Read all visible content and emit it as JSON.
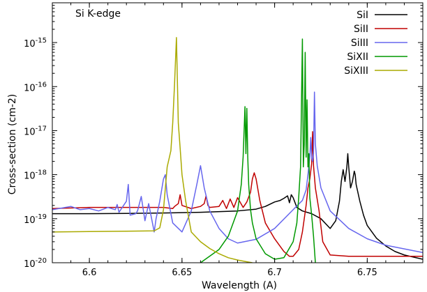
{
  "chart_data": {
    "type": "line",
    "title": "",
    "annotation": "Si K-edge",
    "xlabel": "Wavelength (A)",
    "ylabel": "Cross-section (cm-2)",
    "xlim": [
      6.58,
      6.78
    ],
    "ylim": [
      1e-20,
      8e-15
    ],
    "yscale": "log",
    "grid": false,
    "legend_position": "top-right",
    "x_ticks": [
      {
        "value": 6.6,
        "label": "6.6"
      },
      {
        "value": 6.65,
        "label": "6.65"
      },
      {
        "value": 6.7,
        "label": "6.7"
      },
      {
        "value": 6.75,
        "label": "6.75"
      }
    ],
    "y_ticks": [
      {
        "value": 1e-20,
        "base": "10",
        "exp": "-20"
      },
      {
        "value": 1e-19,
        "base": "10",
        "exp": "-19"
      },
      {
        "value": 1e-18,
        "base": "10",
        "exp": "-18"
      },
      {
        "value": 1e-17,
        "base": "10",
        "exp": "-17"
      },
      {
        "value": 1e-16,
        "base": "10",
        "exp": "-16"
      },
      {
        "value": 1e-15,
        "base": "10",
        "exp": "-15"
      }
    ],
    "series": [
      {
        "name": "SiI",
        "color": "#000000",
        "x": [
          6.58,
          6.6,
          6.62,
          6.64,
          6.66,
          6.68,
          6.69,
          6.695,
          6.7,
          6.703,
          6.705,
          6.707,
          6.708,
          6.709,
          6.71,
          6.712,
          6.715,
          6.72,
          6.725,
          6.73,
          6.733,
          6.735,
          6.736,
          6.737,
          6.738,
          6.739,
          6.7395,
          6.74,
          6.741,
          6.742,
          6.743,
          6.7435,
          6.744,
          6.746,
          6.748,
          6.75,
          6.755,
          6.76,
          6.765,
          6.77,
          6.78
        ],
        "y": [
          1.3e-19,
          1.3e-19,
          1.32e-19,
          1.35e-19,
          1.4e-19,
          1.5e-19,
          1.65e-19,
          1.9e-19,
          2.4e-19,
          2.6e-19,
          2.9e-19,
          3.3e-19,
          2.3e-19,
          3.5e-19,
          3e-19,
          1.8e-19,
          1.5e-19,
          1.3e-19,
          1e-19,
          6e-20,
          9e-20,
          2.5e-19,
          7e-19,
          1.3e-18,
          7e-19,
          1.5e-18,
          3e-18,
          1.5e-18,
          5e-19,
          7e-19,
          1.2e-18,
          1e-18,
          6e-19,
          2.5e-19,
          1.2e-19,
          7e-20,
          3.6e-20,
          2.4e-20,
          1.8e-20,
          1.5e-20,
          1.2e-20
        ]
      },
      {
        "name": "SiII",
        "color": "#c00000",
        "x": [
          6.58,
          6.6,
          6.62,
          6.64,
          6.645,
          6.646,
          6.648,
          6.649,
          6.65,
          6.655,
          6.66,
          6.662,
          6.663,
          6.664,
          6.665,
          6.67,
          6.672,
          6.674,
          6.676,
          6.678,
          6.68,
          6.683,
          6.685,
          6.687,
          6.688,
          6.689,
          6.69,
          6.692,
          6.695,
          6.7,
          6.705,
          6.708,
          6.71,
          6.713,
          6.715,
          6.717,
          6.718,
          6.719,
          6.72,
          6.7205,
          6.721,
          6.722,
          6.724,
          6.726,
          6.73,
          6.74,
          6.78
        ],
        "y": [
          1.7e-19,
          1.8e-19,
          1.8e-19,
          1.8e-19,
          1.7e-19,
          1.9e-19,
          2.2e-19,
          3.5e-19,
          2e-19,
          1.7e-19,
          1.9e-19,
          2.2e-19,
          3.3e-19,
          2e-19,
          1.8e-19,
          1.9e-19,
          2.6e-19,
          1.7e-19,
          2.8e-19,
          1.8e-19,
          3e-19,
          1.8e-19,
          2.4e-19,
          4e-19,
          8e-19,
          1.1e-18,
          8e-19,
          2.6e-19,
          8e-20,
          3.5e-20,
          1.8e-20,
          1.4e-20,
          1.4e-20,
          2e-20,
          5e-20,
          2e-19,
          5e-19,
          8e-19,
          1.8e-18,
          9.5e-18,
          1.6e-18,
          5e-19,
          1.5e-19,
          3e-20,
          1.5e-20,
          1.4e-20,
          1.4e-20
        ]
      },
      {
        "name": "SiIII",
        "color": "#6666ee",
        "x": [
          6.58,
          6.59,
          6.595,
          6.6,
          6.605,
          6.61,
          6.614,
          6.615,
          6.616,
          6.62,
          6.621,
          6.622,
          6.625,
          6.626,
          6.628,
          6.63,
          6.632,
          6.635,
          6.636,
          6.638,
          6.64,
          6.641,
          6.642,
          6.645,
          6.65,
          6.655,
          6.658,
          6.66,
          6.662,
          6.665,
          6.67,
          6.675,
          6.68,
          6.69,
          6.7,
          6.71,
          6.715,
          6.717,
          6.718,
          6.719,
          6.7195,
          6.72,
          6.7205,
          6.721,
          6.7215,
          6.722,
          6.723,
          6.725,
          6.73,
          6.74,
          6.75,
          6.76,
          6.78
        ],
        "y": [
          1.6e-19,
          1.9e-19,
          1.6e-19,
          1.7e-19,
          1.5e-19,
          1.8e-19,
          1.6e-19,
          2.1e-19,
          1.4e-19,
          2.5e-19,
          6e-19,
          1.2e-19,
          1.3e-19,
          1.5e-19,
          3.2e-19,
          9e-20,
          2.2e-19,
          5e-20,
          1e-19,
          2.5e-19,
          8e-19,
          1e-18,
          3.5e-19,
          8e-20,
          5e-20,
          1.5e-19,
          6e-19,
          1.6e-18,
          5e-19,
          1.5e-19,
          6e-20,
          3.5e-20,
          2.8e-20,
          3.4e-20,
          6e-20,
          1.6e-19,
          2.6e-19,
          4.5e-19,
          1e-18,
          2.5e-18,
          7e-18,
          2.5e-18,
          2e-18,
          3e-18,
          7.5e-17,
          5e-18,
          1.6e-18,
          5e-19,
          1.5e-19,
          6e-20,
          3.5e-20,
          2.5e-20,
          1.7e-20
        ]
      },
      {
        "name": "SiXII",
        "color": "#009900",
        "x": [
          6.66,
          6.67,
          6.675,
          6.68,
          6.682,
          6.683,
          6.684,
          6.6845,
          6.685,
          6.6855,
          6.686,
          6.687,
          6.688,
          6.69,
          6.695,
          6.7,
          6.705,
          6.71,
          6.712,
          6.713,
          6.714,
          6.715,
          6.7155,
          6.716,
          6.7165,
          6.717,
          6.7175,
          6.718,
          6.7185,
          6.719,
          6.72,
          6.721,
          6.722
        ],
        "y": [
          1e-20,
          2e-20,
          4e-20,
          1.5e-19,
          6e-19,
          2.5e-18,
          3.5e-17,
          3e-18,
          3.2e-17,
          2.5e-18,
          6e-19,
          1.6e-19,
          8e-20,
          3.5e-20,
          1.6e-20,
          1.2e-20,
          1.3e-20,
          3e-20,
          8e-20,
          3e-19,
          1.5e-18,
          1.2e-15,
          1.5e-18,
          5e-18,
          6e-16,
          2.5e-18,
          5e-17,
          1.5e-18,
          3e-18,
          3e-19,
          1.2e-19,
          4e-20,
          1e-20
        ]
      },
      {
        "name": "SiXIII",
        "color": "#aaaa00",
        "x": [
          6.58,
          6.6,
          6.62,
          6.635,
          6.638,
          6.64,
          6.642,
          6.644,
          6.645,
          6.646,
          6.647,
          6.6475,
          6.648,
          6.649,
          6.65,
          6.652,
          6.655,
          6.66,
          6.665,
          6.67,
          6.675,
          6.68,
          6.685,
          6.688
        ],
        "y": [
          5e-20,
          5.1e-20,
          5.2e-20,
          5.3e-20,
          6.2e-20,
          1.6e-19,
          1.5e-18,
          3.5e-18,
          1.5e-17,
          1.2e-16,
          1.3e-15,
          1.4e-16,
          1.5e-17,
          4e-18,
          1e-18,
          2.5e-19,
          5e-20,
          3e-20,
          2.1e-20,
          1.6e-20,
          1.3e-20,
          1.15e-20,
          1.05e-20,
          1e-20
        ]
      }
    ]
  }
}
